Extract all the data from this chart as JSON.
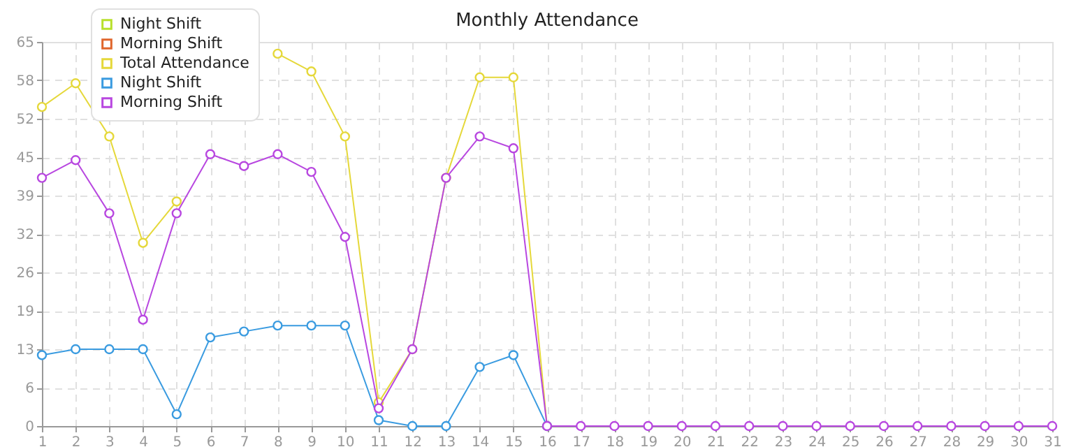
{
  "chart_data": {
    "type": "line",
    "title": "Monthly Attendance",
    "x": [
      1,
      2,
      3,
      4,
      5,
      6,
      7,
      8,
      9,
      10,
      11,
      12,
      13,
      14,
      15,
      16,
      17,
      18,
      19,
      20,
      21,
      22,
      23,
      24,
      25,
      26,
      27,
      28,
      29,
      30,
      31
    ],
    "series": [
      {
        "name": "Night Shift",
        "color": "#b8e02c",
        "values": [
          null,
          null,
          null,
          null,
          null,
          null,
          null,
          null,
          null,
          null,
          null,
          null,
          null,
          null,
          null,
          null,
          null,
          null,
          null,
          null,
          null,
          null,
          null,
          null,
          null,
          null,
          null,
          null,
          null,
          null,
          null
        ]
      },
      {
        "name": "Morning Shift",
        "color": "#e0662c",
        "values": [
          null,
          null,
          null,
          null,
          null,
          null,
          null,
          null,
          null,
          null,
          null,
          null,
          null,
          null,
          null,
          null,
          null,
          null,
          null,
          null,
          null,
          null,
          null,
          null,
          null,
          null,
          null,
          null,
          null,
          null,
          null
        ]
      },
      {
        "name": "Total Attendance",
        "color": "#e5d83a",
        "values": [
          54,
          58,
          49,
          31,
          38,
          null,
          null,
          63,
          60,
          49,
          4,
          13,
          42,
          59,
          59,
          0,
          null,
          null,
          null,
          null,
          null,
          null,
          null,
          null,
          null,
          null,
          null,
          null,
          null,
          null,
          null
        ]
      },
      {
        "name": "Night Shift",
        "color": "#3a9be0",
        "values": [
          12,
          13,
          13,
          13,
          2,
          15,
          16,
          17,
          17,
          17,
          1,
          0,
          0,
          10,
          12,
          0,
          null,
          null,
          null,
          null,
          null,
          null,
          null,
          null,
          null,
          null,
          null,
          null,
          null,
          null,
          null
        ]
      },
      {
        "name": "Morning Shift",
        "color": "#b847e0",
        "values": [
          42,
          45,
          36,
          18,
          36,
          46,
          44,
          46,
          43,
          32,
          3,
          13,
          42,
          49,
          47,
          0,
          0,
          0,
          0,
          0,
          0,
          0,
          0,
          0,
          0,
          0,
          0,
          0,
          0,
          0,
          0
        ]
      }
    ],
    "xlim": [
      1,
      31
    ],
    "xticks": [
      1,
      2,
      3,
      4,
      5,
      6,
      7,
      8,
      9,
      10,
      11,
      12,
      13,
      14,
      15,
      16,
      17,
      18,
      19,
      20,
      21,
      22,
      23,
      24,
      25,
      26,
      27,
      28,
      29,
      30,
      31
    ],
    "ylim": [
      0,
      65
    ],
    "yticks": [
      0,
      {
        "value": 6.5,
        "label": "6"
      },
      13,
      {
        "value": 19.5,
        "label": "19"
      },
      26,
      {
        "value": 32.5,
        "label": "32"
      },
      39,
      {
        "value": 45.5,
        "label": "45"
      },
      52,
      {
        "value": 58.5,
        "label": "58"
      },
      65
    ],
    "grid": true,
    "legend": "top left",
    "marker": "circle",
    "line_style": "solid"
  }
}
